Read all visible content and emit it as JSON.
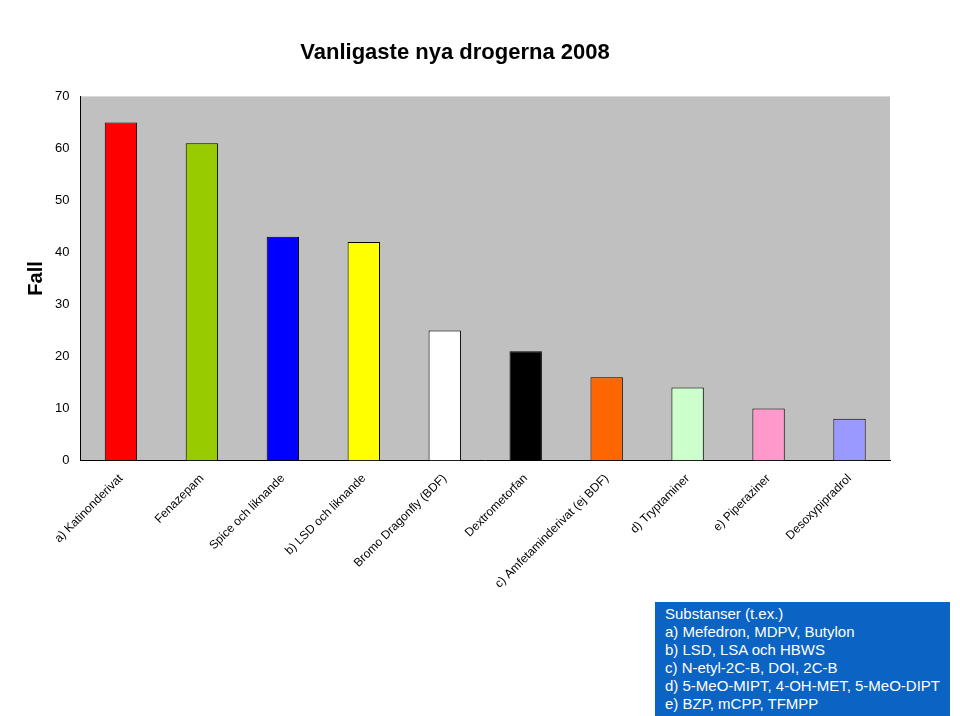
{
  "chart_data": {
    "type": "bar",
    "title": "Vanligaste nya drogerna 2008",
    "y_label": "Fall",
    "categories": [
      "a) Katinonderivat",
      "Fenazepam",
      "Spice och liknande",
      "b) LSD och liknande",
      "Bromo Dragonfly (BDF)",
      "Dextrometorfan",
      "c) Amfetaminderivat (ej BDF)",
      "d) Tryptaminer",
      "e) Piperaziner",
      "Desoxypipradrol"
    ],
    "values": [
      65,
      61,
      43,
      42,
      25,
      21,
      16,
      14,
      10,
      8
    ],
    "colors": [
      "#ff0000",
      "#99cc00",
      "#0000ff",
      "#ffff00",
      "#ffffff",
      "#000000",
      "#ff6600",
      "#ccffcc",
      "#ff99cc",
      "#9999ff"
    ],
    "ylim": [
      0,
      70
    ],
    "yticks": [
      0,
      10,
      20,
      30,
      40,
      50,
      60,
      70
    ],
    "grid": false,
    "annotations": [
      "Substanser (t.ex.)",
      "a) Mefedron, MDPV, Butylon",
      "b) LSD, LSA och HBWS",
      "c) N-etyl-2C-B, DOI, 2C-B",
      "d) 5-MeO-MIPT, 4-OH-MET, 5-MeO-DIPT",
      "e) BZP, mCPP, TFMPP"
    ]
  }
}
